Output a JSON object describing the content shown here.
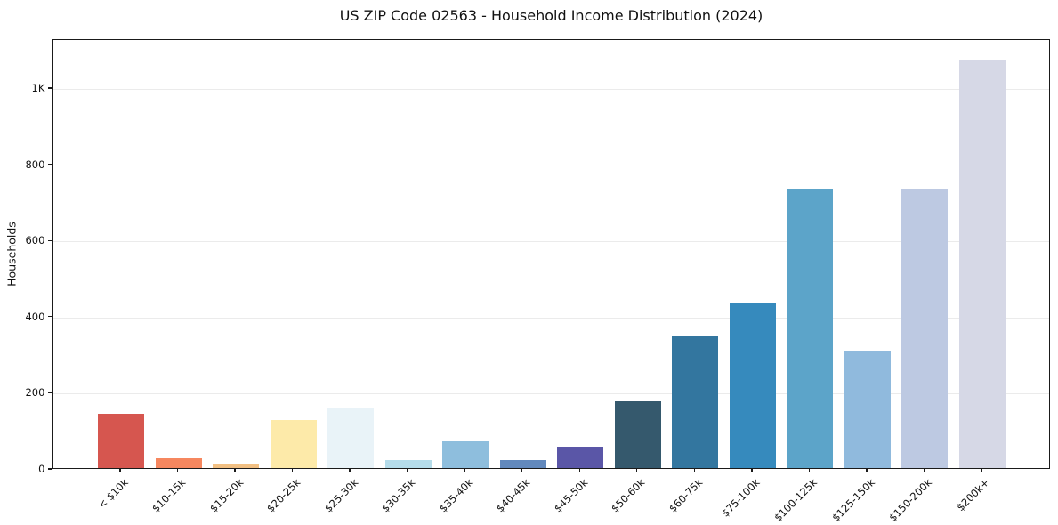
{
  "chart": {
    "title": "US ZIP Code 02563 - Household Income Distribution (2024)",
    "ylabel": "Households"
  },
  "chart_data": {
    "type": "bar",
    "title": "US ZIP Code 02563 - Household Income Distribution (2024)",
    "xlabel": "",
    "ylabel": "Households",
    "categories": [
      "< $10k",
      "$10-15k",
      "$15-20k",
      "$20-25k",
      "$25-30k",
      "$30-35k",
      "$35-40k",
      "$40-45k",
      "$45-50k",
      "$50-60k",
      "$60-75k",
      "$75-100k",
      "$100-125k",
      "$125-150k",
      "$150-200k",
      "$200k+"
    ],
    "values": [
      142,
      25,
      10,
      126,
      157,
      20,
      71,
      22,
      55,
      175,
      346,
      432,
      733,
      307,
      733,
      1072
    ],
    "bar_colors": [
      "#d6564f",
      "#f6875f",
      "#f2c083",
      "#fdeaa9",
      "#e9f3f8",
      "#b5dcea",
      "#8ebedd",
      "#6289bd",
      "#5a56a7",
      "#35596d",
      "#33769f",
      "#368abd",
      "#5ca4c9",
      "#90badd",
      "#bdc9e2",
      "#d6d8e6"
    ],
    "ytick_values": [
      0,
      200,
      400,
      600,
      800,
      1000
    ],
    "ytick_labels": [
      "0",
      "200",
      "400",
      "600",
      "800",
      "1K"
    ],
    "ylim": [
      0,
      1129
    ],
    "grid": true,
    "gridline_color": "#ebebeb",
    "legend": false,
    "background_color": "#ffffff"
  }
}
